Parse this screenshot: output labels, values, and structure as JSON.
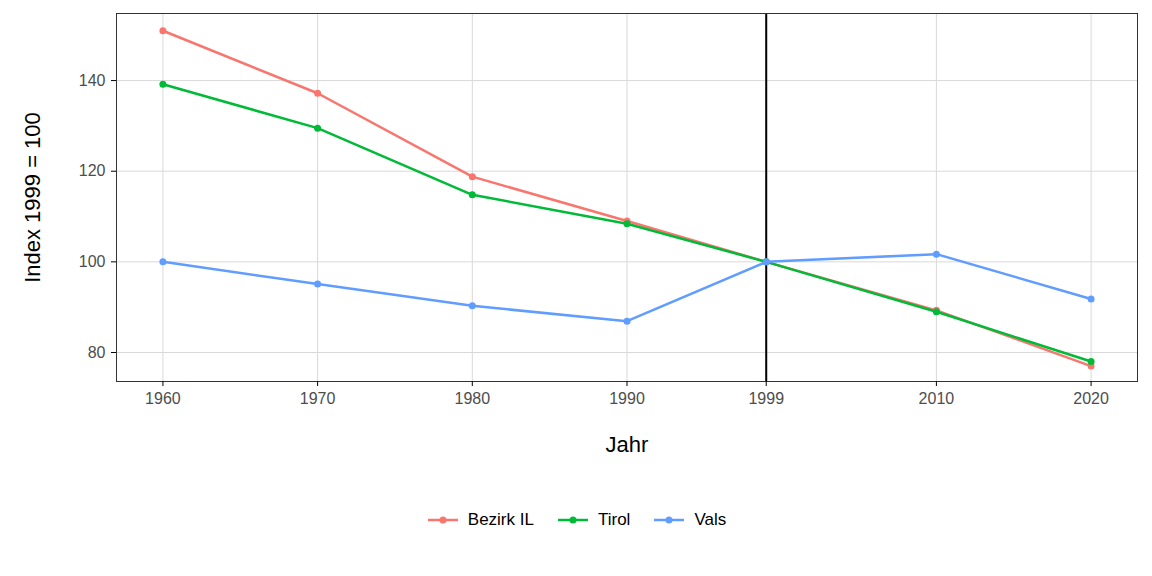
{
  "chart_data": {
    "type": "line",
    "x_label": "Jahr",
    "y_label": "Index 1999 = 100",
    "x": [
      1960,
      1970,
      1980,
      1990,
      1999,
      2010,
      2020
    ],
    "series": [
      {
        "name": "Bezirk IL",
        "color": "#F8766D",
        "values": [
          151,
          137.2,
          118.8,
          109,
          100,
          89.3,
          77
        ]
      },
      {
        "name": "Tirol",
        "color": "#00BA38",
        "values": [
          139.2,
          129.5,
          114.8,
          108.4,
          100,
          89,
          78
        ]
      },
      {
        "name": "Vals",
        "color": "#619CFF",
        "values": [
          100,
          95.1,
          90.3,
          86.9,
          100,
          101.7,
          91.8
        ]
      }
    ],
    "xlim": [
      1957,
      2023
    ],
    "xticks": [
      1960,
      1970,
      1980,
      1990,
      1999,
      2010,
      2020
    ],
    "ylim": [
      73.6,
      154.8
    ],
    "yticks": [
      80,
      100,
      120,
      140
    ],
    "vlines": [
      1999
    ],
    "grid": true,
    "marker": "circle",
    "legend": "bottom"
  }
}
